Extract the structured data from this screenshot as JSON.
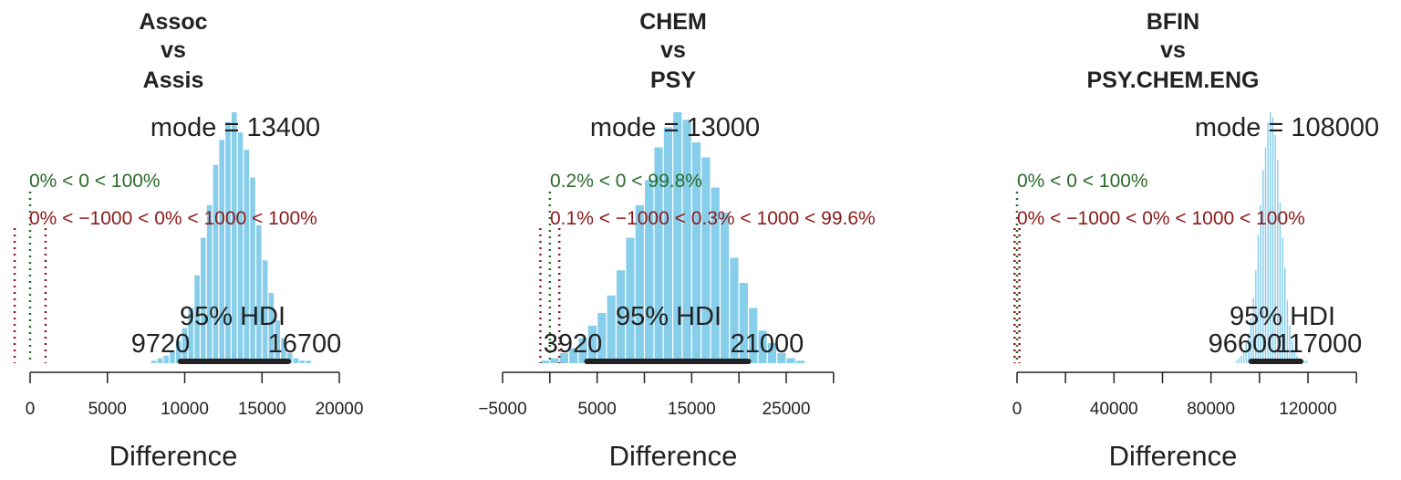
{
  "chart_data": [
    {
      "type": "bar",
      "title": [
        "Assoc",
        "vs",
        "Assis"
      ],
      "xlabel": "Difference",
      "xlim": [
        -1500,
        21500
      ],
      "ticks": [
        0,
        5000,
        10000,
        15000,
        20000
      ],
      "tick_labels": [
        "0",
        "5000",
        "10000",
        "15000",
        "20000"
      ],
      "mode_text": "mode = 13400",
      "hdi_label": "95% HDI",
      "hdi": [
        9720,
        16700
      ],
      "hdi_low_label": "9720",
      "hdi_high_label": "16700",
      "comp_text": "0% < 0 < 100%",
      "rope_text": "0% < −1000 < 0% < 1000 < 100%",
      "comp_value": 0,
      "rope": [
        -1000,
        1000
      ],
      "bins": {
        "start": 7800,
        "width": 400,
        "counts": [
          1,
          2,
          3,
          5,
          9,
          14,
          22,
          35,
          50,
          63,
          79,
          89,
          96,
          100,
          92,
          85,
          74,
          55,
          41,
          28,
          17,
          10,
          4,
          2,
          1,
          1
        ]
      }
    },
    {
      "type": "bar",
      "title": [
        "CHEM",
        "vs",
        "PSY"
      ],
      "xlabel": "Difference",
      "xlim": [
        -5000,
        31000
      ],
      "ticks": [
        -5000,
        0,
        5000,
        10000,
        15000,
        20000,
        25000,
        30000
      ],
      "tick_labels": [
        "−5000",
        "",
        "5000",
        "",
        "15000",
        "",
        "25000",
        ""
      ],
      "mode_text": "mode = 13000",
      "hdi_label": "95% HDI",
      "hdi": [
        3920,
        21000
      ],
      "hdi_low_label": "3920",
      "hdi_high_label": "21000",
      "comp_text": "0.2% < 0 < 99.8%",
      "rope_text": "0.1% < −1000 < 0.3% < 1000 < 99.6%",
      "comp_value": 0,
      "rope": [
        -1000,
        1000
      ],
      "bins": {
        "start": -1000,
        "width": 1000,
        "counts": [
          1,
          2,
          4,
          6,
          10,
          15,
          20,
          27,
          37,
          50,
          63,
          73,
          86,
          94,
          100,
          97,
          88,
          82,
          70,
          60,
          42,
          32,
          22,
          13,
          8,
          4,
          2,
          1
        ]
      }
    },
    {
      "type": "bar",
      "title": [
        "BFIN",
        "vs",
        "PSY.CHEM.ENG"
      ],
      "xlabel": "Difference",
      "xlim": [
        -1000,
        141000
      ],
      "ticks": [
        0,
        20000,
        40000,
        60000,
        80000,
        100000,
        120000,
        140000
      ],
      "tick_labels": [
        "0",
        "",
        "40000",
        "",
        "80000",
        "",
        "120000",
        ""
      ],
      "mode_text": "mode = 108000",
      "hdi_label": "95% HDI",
      "hdi_low_label": "96600",
      "hdi_high_label": "117000",
      "hdi": [
        96600,
        117000
      ],
      "comp_text": "0% < 0 < 100%",
      "rope_text": "0% < −1000 < 0% < 1000 < 100%",
      "comp_value": 0,
      "rope": [
        -1000,
        1000
      ],
      "bins": {
        "start": 90000,
        "width": 1000,
        "counts": [
          1,
          2,
          3,
          5,
          8,
          12,
          18,
          26,
          37,
          51,
          63,
          77,
          86,
          96,
          100,
          98,
          91,
          81,
          64,
          50,
          38,
          25,
          15,
          9,
          5,
          3,
          2,
          1,
          1,
          1
        ]
      }
    }
  ],
  "colors": {
    "bar": "#87ceeb",
    "text": "#222222",
    "comp": "#2a6a2a",
    "rope": "#8b1a1a",
    "hdi_bar": "#222222"
  }
}
